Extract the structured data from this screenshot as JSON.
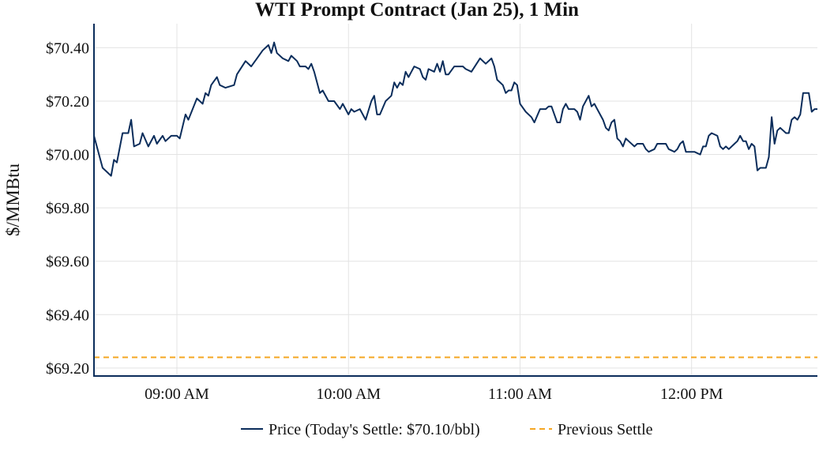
{
  "chart_data": {
    "type": "line",
    "title": "WTI Prompt Contract (Jan 25), 1 Min",
    "xlabel": "",
    "ylabel": "$/MMBtu",
    "xlim": [
      "08:31",
      "12:44"
    ],
    "ylim": [
      69.17,
      70.49
    ],
    "x_ticks": [
      {
        "t": "09:00",
        "label": "09:00 AM"
      },
      {
        "t": "10:00",
        "label": "10:00 AM"
      },
      {
        "t": "11:00",
        "label": "11:00 AM"
      },
      {
        "t": "12:00",
        "label": "12:00 PM"
      }
    ],
    "y_ticks": [
      {
        "v": 69.2,
        "label": "$69.20"
      },
      {
        "v": 69.4,
        "label": "$69.40"
      },
      {
        "v": 69.6,
        "label": "$69.60"
      },
      {
        "v": 69.8,
        "label": "$69.80"
      },
      {
        "v": 70.0,
        "label": "$70.00"
      },
      {
        "v": 70.2,
        "label": "$70.20"
      },
      {
        "v": 70.4,
        "label": "$70.40"
      }
    ],
    "grid": true,
    "legend_position": "bottom",
    "colors": {
      "price": "#0b2d5b",
      "previous_settle": "#f5a623",
      "grid": "#e3e3e3",
      "axis": "#0b2d5b"
    },
    "series": [
      {
        "name": "Price (Today's Settle: $70.10/bbl)",
        "style": "solid",
        "points": [
          [
            "08:31",
            70.07
          ],
          [
            "08:34",
            69.95
          ],
          [
            "08:37",
            69.92
          ],
          [
            "08:38",
            69.98
          ],
          [
            "08:39",
            69.97
          ],
          [
            "08:41",
            70.08
          ],
          [
            "08:43",
            70.08
          ],
          [
            "08:44",
            70.13
          ],
          [
            "08:45",
            70.03
          ],
          [
            "08:47",
            70.04
          ],
          [
            "08:48",
            70.08
          ],
          [
            "08:50",
            70.03
          ],
          [
            "08:52",
            70.07
          ],
          [
            "08:53",
            70.04
          ],
          [
            "08:55",
            70.07
          ],
          [
            "08:56",
            70.05
          ],
          [
            "08:58",
            70.07
          ],
          [
            "09:00",
            70.07
          ],
          [
            "09:01",
            70.06
          ],
          [
            "09:03",
            70.15
          ],
          [
            "09:04",
            70.13
          ],
          [
            "09:07",
            70.21
          ],
          [
            "09:09",
            70.19
          ],
          [
            "09:10",
            70.23
          ],
          [
            "09:11",
            70.22
          ],
          [
            "09:12",
            70.26
          ],
          [
            "09:14",
            70.29
          ],
          [
            "09:15",
            70.26
          ],
          [
            "09:17",
            70.25
          ],
          [
            "09:20",
            70.26
          ],
          [
            "09:21",
            70.3
          ],
          [
            "09:24",
            70.35
          ],
          [
            "09:26",
            70.33
          ],
          [
            "09:28",
            70.36
          ],
          [
            "09:30",
            70.39
          ],
          [
            "09:32",
            70.41
          ],
          [
            "09:33",
            70.38
          ],
          [
            "09:34",
            70.42
          ],
          [
            "09:35",
            70.38
          ],
          [
            "09:37",
            70.36
          ],
          [
            "09:39",
            70.35
          ],
          [
            "09:40",
            70.37
          ],
          [
            "09:42",
            70.35
          ],
          [
            "09:43",
            70.33
          ],
          [
            "09:45",
            70.33
          ],
          [
            "09:46",
            70.32
          ],
          [
            "09:47",
            70.34
          ],
          [
            "09:48",
            70.31
          ],
          [
            "09:50",
            70.23
          ],
          [
            "09:51",
            70.24
          ],
          [
            "09:53",
            70.2
          ],
          [
            "09:55",
            70.2
          ],
          [
            "09:57",
            70.17
          ],
          [
            "09:58",
            70.19
          ],
          [
            "10:00",
            70.15
          ],
          [
            "10:01",
            70.17
          ],
          [
            "10:02",
            70.16
          ],
          [
            "10:04",
            70.17
          ],
          [
            "10:06",
            70.13
          ],
          [
            "10:08",
            70.2
          ],
          [
            "10:09",
            70.22
          ],
          [
            "10:10",
            70.15
          ],
          [
            "10:11",
            70.15
          ],
          [
            "10:13",
            70.2
          ],
          [
            "10:15",
            70.22
          ],
          [
            "10:16",
            70.27
          ],
          [
            "10:17",
            70.25
          ],
          [
            "10:18",
            70.27
          ],
          [
            "10:19",
            70.26
          ],
          [
            "10:20",
            70.31
          ],
          [
            "10:21",
            70.29
          ],
          [
            "10:22",
            70.31
          ],
          [
            "10:23",
            70.33
          ],
          [
            "10:25",
            70.32
          ],
          [
            "10:26",
            70.29
          ],
          [
            "10:27",
            70.28
          ],
          [
            "10:28",
            70.32
          ],
          [
            "10:30",
            70.31
          ],
          [
            "10:31",
            70.34
          ],
          [
            "10:32",
            70.31
          ],
          [
            "10:33",
            70.35
          ],
          [
            "10:34",
            70.3
          ],
          [
            "10:35",
            70.3
          ],
          [
            "10:37",
            70.33
          ],
          [
            "10:40",
            70.33
          ],
          [
            "10:41",
            70.32
          ],
          [
            "10:43",
            70.31
          ],
          [
            "10:46",
            70.36
          ],
          [
            "10:48",
            70.34
          ],
          [
            "10:50",
            70.36
          ],
          [
            "10:51",
            70.33
          ],
          [
            "10:52",
            70.28
          ],
          [
            "10:54",
            70.26
          ],
          [
            "10:55",
            70.23
          ],
          [
            "10:56",
            70.24
          ],
          [
            "10:57",
            70.24
          ],
          [
            "10:58",
            70.27
          ],
          [
            "10:59",
            70.26
          ],
          [
            "11:00",
            70.19
          ],
          [
            "11:02",
            70.16
          ],
          [
            "11:04",
            70.14
          ],
          [
            "11:05",
            70.12
          ],
          [
            "11:07",
            70.17
          ],
          [
            "11:09",
            70.17
          ],
          [
            "11:10",
            70.18
          ],
          [
            "11:11",
            70.18
          ],
          [
            "11:13",
            70.12
          ],
          [
            "11:14",
            70.12
          ],
          [
            "11:15",
            70.17
          ],
          [
            "11:16",
            70.19
          ],
          [
            "11:17",
            70.17
          ],
          [
            "11:19",
            70.17
          ],
          [
            "11:20",
            70.16
          ],
          [
            "11:21",
            70.13
          ],
          [
            "11:22",
            70.18
          ],
          [
            "11:23",
            70.2
          ],
          [
            "11:24",
            70.22
          ],
          [
            "11:25",
            70.18
          ],
          [
            "11:26",
            70.19
          ],
          [
            "11:27",
            70.17
          ],
          [
            "11:29",
            70.13
          ],
          [
            "11:30",
            70.1
          ],
          [
            "11:31",
            70.09
          ],
          [
            "11:32",
            70.12
          ],
          [
            "11:33",
            70.13
          ],
          [
            "11:34",
            70.06
          ],
          [
            "11:35",
            70.05
          ],
          [
            "11:36",
            70.03
          ],
          [
            "11:37",
            70.06
          ],
          [
            "11:38",
            70.05
          ],
          [
            "11:40",
            70.03
          ],
          [
            "11:41",
            70.04
          ],
          [
            "11:42",
            70.04
          ],
          [
            "11:43",
            70.04
          ],
          [
            "11:44",
            70.02
          ],
          [
            "11:45",
            70.01
          ],
          [
            "11:47",
            70.02
          ],
          [
            "11:48",
            70.04
          ],
          [
            "11:49",
            70.04
          ],
          [
            "11:51",
            70.04
          ],
          [
            "11:52",
            70.02
          ],
          [
            "11:54",
            70.01
          ],
          [
            "11:55",
            70.02
          ],
          [
            "11:56",
            70.04
          ],
          [
            "11:57",
            70.05
          ],
          [
            "11:58",
            70.01
          ],
          [
            "12:00",
            70.01
          ],
          [
            "12:01",
            70.01
          ],
          [
            "12:03",
            70.0
          ],
          [
            "12:04",
            70.03
          ],
          [
            "12:05",
            70.03
          ],
          [
            "12:06",
            70.07
          ],
          [
            "12:07",
            70.08
          ],
          [
            "12:09",
            70.07
          ],
          [
            "12:10",
            70.03
          ],
          [
            "12:11",
            70.02
          ],
          [
            "12:12",
            70.03
          ],
          [
            "12:13",
            70.02
          ],
          [
            "12:15",
            70.04
          ],
          [
            "12:16",
            70.05
          ],
          [
            "12:17",
            70.07
          ],
          [
            "12:18",
            70.05
          ],
          [
            "12:19",
            70.05
          ],
          [
            "12:20",
            70.02
          ],
          [
            "12:21",
            70.04
          ],
          [
            "12:22",
            70.03
          ],
          [
            "12:23",
            69.94
          ],
          [
            "12:24",
            69.95
          ],
          [
            "12:26",
            69.95
          ],
          [
            "12:27",
            69.99
          ],
          [
            "12:28",
            70.14
          ],
          [
            "12:29",
            70.04
          ],
          [
            "12:30",
            70.09
          ],
          [
            "12:31",
            70.1
          ],
          [
            "12:33",
            70.08
          ],
          [
            "12:34",
            70.08
          ],
          [
            "12:35",
            70.13
          ],
          [
            "12:36",
            70.14
          ],
          [
            "12:37",
            70.13
          ],
          [
            "12:38",
            70.15
          ],
          [
            "12:39",
            70.23
          ],
          [
            "12:41",
            70.23
          ],
          [
            "12:42",
            70.16
          ],
          [
            "12:43",
            70.17
          ],
          [
            "12:44",
            70.17
          ]
        ]
      },
      {
        "name": "Previous Settle",
        "style": "dashed",
        "value": 69.24
      }
    ]
  }
}
